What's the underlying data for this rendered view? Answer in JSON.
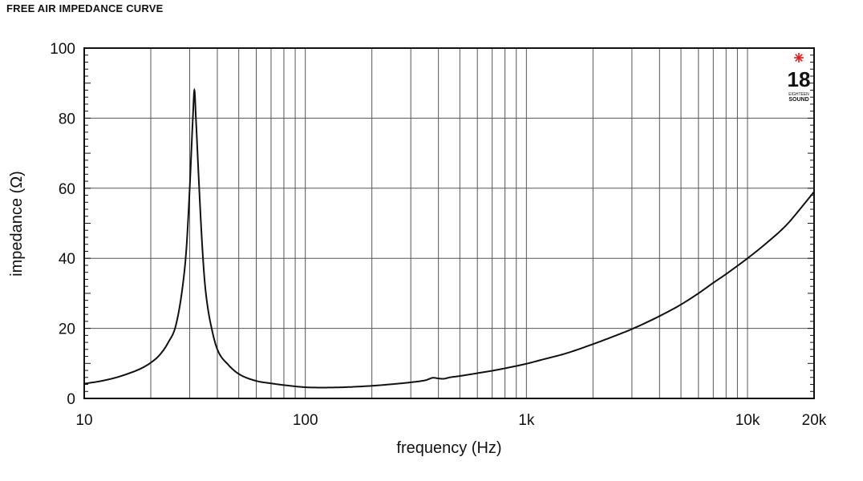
{
  "page_title": "FREE AIR IMPEDANCE CURVE",
  "logo": {
    "number": "18",
    "line1": "EIGHTEEN",
    "line2": "SOUND",
    "star_color": "#e02020"
  },
  "chart_data": {
    "type": "line",
    "title": "FREE AIR IMPEDANCE CURVE",
    "xlabel": "frequency (Hz)",
    "ylabel": "impedance (Ω)",
    "xscale": "log",
    "xlim": [
      10,
      20000
    ],
    "ylim": [
      0,
      100
    ],
    "grid": true,
    "x_tick_labels": [
      {
        "value": 10,
        "label": "10"
      },
      {
        "value": 100,
        "label": "100"
      },
      {
        "value": 1000,
        "label": "1k"
      },
      {
        "value": 10000,
        "label": "10k"
      },
      {
        "value": 20000,
        "label": "20k"
      }
    ],
    "y_tick_labels": [
      {
        "value": 0,
        "label": "0"
      },
      {
        "value": 20,
        "label": "20"
      },
      {
        "value": 40,
        "label": "40"
      },
      {
        "value": 60,
        "label": "60"
      },
      {
        "value": 80,
        "label": "80"
      },
      {
        "value": 100,
        "label": "100"
      }
    ],
    "series": [
      {
        "color": "#111111",
        "x": [
          10,
          12,
          14,
          16,
          18,
          20,
          22,
          24,
          26,
          28,
          29,
          30,
          31,
          31.5,
          32,
          33,
          34,
          35,
          36,
          38,
          40,
          45,
          50,
          60,
          70,
          80,
          100,
          120,
          150,
          200,
          250,
          300,
          350,
          380,
          400,
          420,
          450,
          500,
          600,
          700,
          800,
          1000,
          1200,
          1500,
          2000,
          2500,
          3000,
          4000,
          5000,
          6000,
          7000,
          8000,
          10000,
          12000,
          15000,
          17000,
          20000
        ],
        "y": [
          4.2,
          5.0,
          6.0,
          7.2,
          8.5,
          10.2,
          12.5,
          16,
          21,
          33,
          43,
          60,
          80,
          88,
          80,
          62,
          46,
          34,
          27,
          19,
          14,
          9.5,
          7.0,
          5.0,
          4.3,
          3.8,
          3.2,
          3.1,
          3.2,
          3.6,
          4.1,
          4.6,
          5.2,
          5.9,
          5.7,
          5.6,
          6.0,
          6.4,
          7.2,
          7.9,
          8.6,
          9.9,
          11.2,
          12.8,
          15.5,
          17.8,
          19.8,
          23.5,
          26.8,
          30.0,
          33.0,
          35.5,
          40.0,
          44.0,
          49.5,
          53.5,
          59.0
        ]
      }
    ]
  }
}
